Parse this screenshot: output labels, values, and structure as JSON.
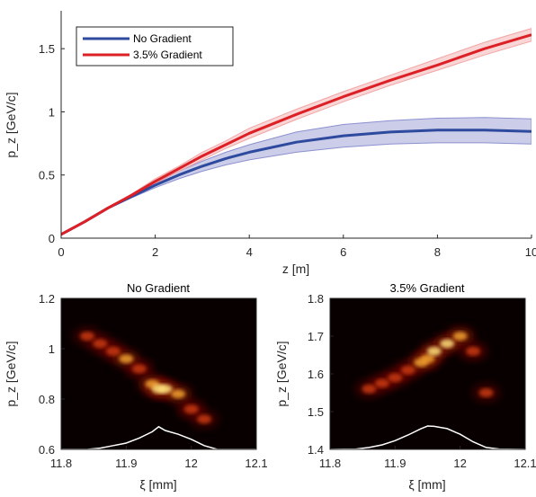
{
  "chart_data": [
    {
      "type": "line",
      "xlabel": "z [m]",
      "ylabel": "p_z [GeV/c]",
      "xlim": [
        0,
        10
      ],
      "ylim": [
        0,
        1.8
      ],
      "xticks": [
        "0",
        "2",
        "4",
        "6",
        "8",
        "10"
      ],
      "yticks": [
        "0",
        "0.5",
        "1",
        "1.5"
      ],
      "legend_position": "top-left",
      "grid": false,
      "series": [
        {
          "name": "No Gradient",
          "color": "#2E4A9E",
          "band_color": "#8C90CF",
          "x": [
            0,
            0.5,
            1,
            1.5,
            2,
            2.5,
            3,
            3.5,
            4,
            5,
            6,
            7,
            8,
            9,
            10
          ],
          "y": [
            0.03,
            0.13,
            0.24,
            0.33,
            0.42,
            0.5,
            0.57,
            0.63,
            0.68,
            0.76,
            0.81,
            0.84,
            0.855,
            0.855,
            0.845
          ],
          "lower": [
            0.03,
            0.13,
            0.235,
            0.32,
            0.4,
            0.47,
            0.53,
            0.58,
            0.62,
            0.68,
            0.72,
            0.745,
            0.755,
            0.755,
            0.745
          ],
          "upper": [
            0.03,
            0.13,
            0.245,
            0.34,
            0.44,
            0.53,
            0.61,
            0.68,
            0.74,
            0.84,
            0.9,
            0.93,
            0.95,
            0.955,
            0.945
          ]
        },
        {
          "name": "3.5% Gradient",
          "color": "#DD1F26",
          "band_color": "#F2A5A5",
          "x": [
            0,
            0.5,
            1,
            1.5,
            2,
            2.5,
            3,
            3.5,
            4,
            5,
            6,
            7,
            8,
            9,
            10
          ],
          "y": [
            0.03,
            0.13,
            0.24,
            0.34,
            0.45,
            0.55,
            0.65,
            0.74,
            0.83,
            0.98,
            1.12,
            1.25,
            1.37,
            1.5,
            1.61
          ],
          "lower": [
            0.03,
            0.13,
            0.235,
            0.33,
            0.43,
            0.53,
            0.62,
            0.71,
            0.79,
            0.94,
            1.08,
            1.21,
            1.33,
            1.45,
            1.56
          ],
          "upper": [
            0.03,
            0.13,
            0.245,
            0.35,
            0.47,
            0.57,
            0.68,
            0.77,
            0.87,
            1.02,
            1.16,
            1.29,
            1.42,
            1.55,
            1.66
          ]
        }
      ]
    },
    {
      "type": "heatmap",
      "title": "No Gradient",
      "xlabel": "ξ [mm]",
      "ylabel": "p_z [GeV/c]",
      "xlim": [
        11.8,
        12.1
      ],
      "ylim": [
        0.6,
        1.2
      ],
      "xticks": [
        "11.8",
        "11.9",
        "12",
        "12.1"
      ],
      "yticks": [
        "0.6",
        "0.8",
        "1",
        "1.2"
      ],
      "ridge": {
        "xi": [
          11.84,
          11.86,
          11.88,
          11.9,
          11.92,
          11.94,
          11.95,
          11.96,
          11.98,
          12.0,
          12.02
        ],
        "pz": [
          1.05,
          1.02,
          0.99,
          0.96,
          0.92,
          0.86,
          0.84,
          0.84,
          0.82,
          0.76,
          0.72
        ],
        "intensity": [
          0.3,
          0.5,
          0.6,
          0.65,
          0.6,
          0.8,
          1.0,
          0.9,
          0.7,
          0.6,
          0.3
        ]
      },
      "current_profile": {
        "xi": [
          11.8,
          11.84,
          11.86,
          11.88,
          11.9,
          11.92,
          11.94,
          11.95,
          11.96,
          11.98,
          12.0,
          12.02,
          12.04,
          12.06,
          12.1
        ],
        "pz": [
          0.6,
          0.6,
          0.605,
          0.615,
          0.625,
          0.645,
          0.67,
          0.69,
          0.675,
          0.66,
          0.64,
          0.615,
          0.6,
          0.6,
          0.6
        ]
      }
    },
    {
      "type": "heatmap",
      "title": "3.5% Gradient",
      "xlabel": "ξ [mm]",
      "ylabel": "p_z [GeV/c]",
      "xlim": [
        11.8,
        12.1
      ],
      "ylim": [
        1.4,
        1.8
      ],
      "xticks": [
        "11.8",
        "11.9",
        "12",
        "12.1"
      ],
      "yticks": [
        "1.4",
        "1.5",
        "1.6",
        "1.7",
        "1.8"
      ],
      "ridge": {
        "xi": [
          11.86,
          11.88,
          11.9,
          11.92,
          11.94,
          11.95,
          11.96,
          11.98,
          12.0,
          12.02,
          12.04
        ],
        "pz": [
          1.56,
          1.575,
          1.59,
          1.61,
          1.63,
          1.64,
          1.66,
          1.68,
          1.7,
          1.66,
          1.55
        ],
        "intensity": [
          0.3,
          0.5,
          0.55,
          0.6,
          0.65,
          0.85,
          0.9,
          1.0,
          0.8,
          0.5,
          0.3
        ]
      },
      "current_profile": {
        "xi": [
          11.8,
          11.84,
          11.86,
          11.88,
          11.9,
          11.92,
          11.94,
          11.95,
          11.96,
          11.98,
          12.0,
          12.02,
          12.04,
          12.06,
          12.1
        ],
        "pz": [
          1.4,
          1.401,
          1.405,
          1.412,
          1.423,
          1.438,
          1.455,
          1.462,
          1.461,
          1.455,
          1.44,
          1.42,
          1.405,
          1.401,
          1.4
        ]
      }
    }
  ]
}
